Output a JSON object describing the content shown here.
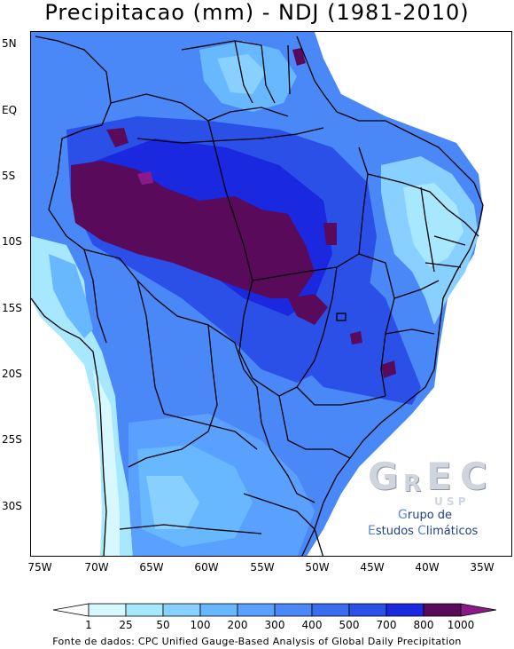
{
  "title": "Precipitacao (mm) - NDJ (1981-2010)",
  "map": {
    "lat_labels": [
      "5N",
      "EQ",
      "5S",
      "10S",
      "15S",
      "20S",
      "25S",
      "30S"
    ],
    "lon_labels": [
      "75W",
      "70W",
      "65W",
      "60W",
      "55W",
      "50W",
      "45W",
      "40W",
      "35W"
    ],
    "lon_range": [
      -76,
      -34
    ],
    "lat_range": [
      6,
      -34
    ]
  },
  "legend": {
    "levels": [
      "1",
      "25",
      "50",
      "100",
      "200",
      "300",
      "400",
      "500",
      "700",
      "800",
      "1000"
    ],
    "colors": [
      "#ffffff",
      "#d8f8ff",
      "#a8e8ff",
      "#88d0ff",
      "#68b8ff",
      "#5aa0ff",
      "#4a88f8",
      "#3a6cf0",
      "#2a50e8",
      "#1a28e0",
      "#5a0a5a",
      "#8a1a8a"
    ]
  },
  "logo": {
    "letters": [
      "G",
      "R",
      "E",
      "C"
    ],
    "usp": "U S P",
    "line1": {
      "cap": "G",
      "rest": "rupo de"
    },
    "line2": {
      "cap1": "E",
      "rest1": "studos ",
      "cap2": "C",
      "rest2": "limáticos"
    }
  },
  "source": "Fonte de dados: CPC Unified Gauge-Based Analysis of Global Daily Precipitation"
}
